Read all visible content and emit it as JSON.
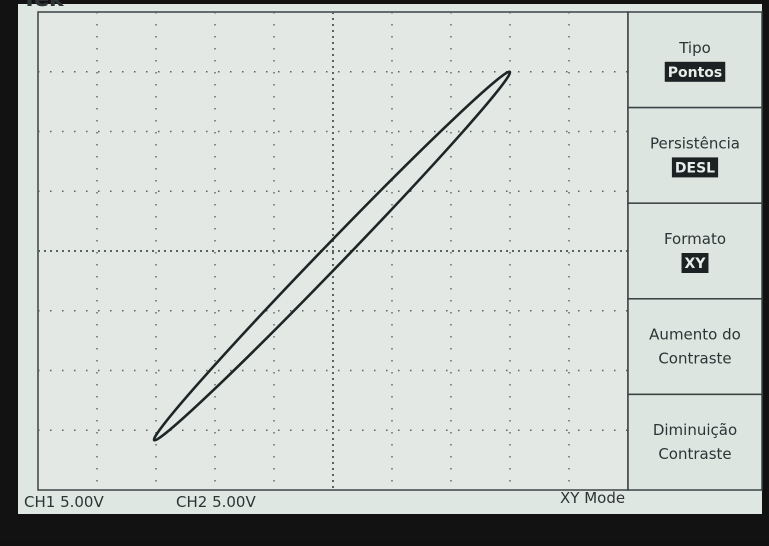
{
  "header": {
    "brand": "Tek"
  },
  "menu": [
    {
      "label": [
        "Tipo"
      ],
      "value": "Pontos"
    },
    {
      "label": [
        "Persistência"
      ],
      "value": "DESL"
    },
    {
      "label": [
        "Formato"
      ],
      "value": "XY"
    },
    {
      "label": [
        "Aumento do",
        "Contraste"
      ]
    },
    {
      "label": [
        "Diminuição",
        "Contraste"
      ]
    }
  ],
  "status": {
    "ch1": "CH1 5.00V",
    "ch2": "CH2 5.00V",
    "mode": "XY Mode"
  }
}
